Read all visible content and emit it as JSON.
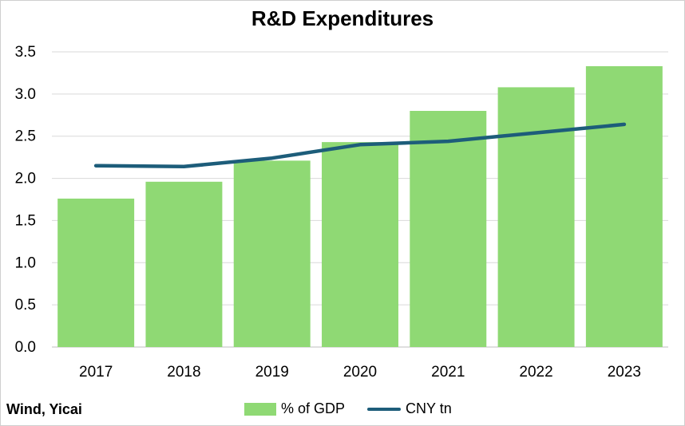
{
  "chart_data": {
    "type": "bar",
    "title": "R&D Expenditures",
    "categories": [
      "2017",
      "2018",
      "2019",
      "2020",
      "2021",
      "2022",
      "2023"
    ],
    "series": [
      {
        "name": "% of GDP",
        "type": "bar",
        "color": "#8fd974",
        "values": [
          1.76,
          1.96,
          2.21,
          2.43,
          2.8,
          3.08,
          3.33
        ]
      },
      {
        "name": "CNY tn",
        "type": "line",
        "color": "#1d5d7a",
        "values": [
          2.15,
          2.14,
          2.24,
          2.4,
          2.44,
          2.54,
          2.64
        ]
      }
    ],
    "y_ticks": [
      "0.0",
      "0.5",
      "1.0",
      "1.5",
      "2.0",
      "2.5",
      "3.0",
      "3.5"
    ],
    "ylim": [
      0,
      3.5
    ],
    "grid": true,
    "legend_position": "bottom",
    "source": "Wind, Yicai"
  }
}
